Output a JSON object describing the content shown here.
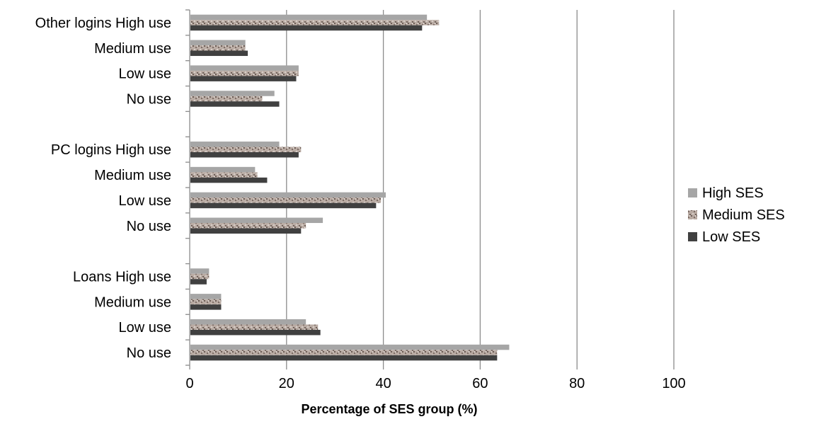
{
  "chart_data": {
    "type": "bar",
    "orientation": "horizontal",
    "categories": [
      "No use",
      "Low use",
      "Medium use",
      "Loans High use",
      "",
      "No use",
      "Low use",
      "Medium use",
      "PC logins High use",
      "",
      "No use",
      "Low use",
      "Medium use",
      "Other logins High use"
    ],
    "series": [
      {
        "name": "High SES",
        "values": [
          66,
          24,
          6.5,
          4,
          null,
          27.5,
          40.5,
          13.5,
          18.5,
          null,
          17.5,
          22.5,
          11.5,
          49
        ],
        "color": "#a6a6a6",
        "pattern": "solid"
      },
      {
        "name": "Medium SES",
        "values": [
          63.5,
          26.5,
          6.5,
          4,
          null,
          24,
          39.5,
          14,
          23,
          null,
          15,
          22.5,
          11.5,
          51.5
        ],
        "color": "#a89890",
        "pattern": "textured"
      },
      {
        "name": "Low SES",
        "values": [
          63.5,
          27,
          6.5,
          3.5,
          null,
          23,
          38.5,
          16,
          22.5,
          null,
          18.5,
          22,
          12,
          48
        ],
        "color": "#404040",
        "pattern": "solid"
      }
    ],
    "xlabel": "Percentage of SES group (%)",
    "ylabel": "",
    "xlim": [
      0,
      100
    ],
    "xticks": [
      0,
      20,
      40,
      60,
      80,
      100
    ],
    "grid": "vertical",
    "legend": "right"
  }
}
